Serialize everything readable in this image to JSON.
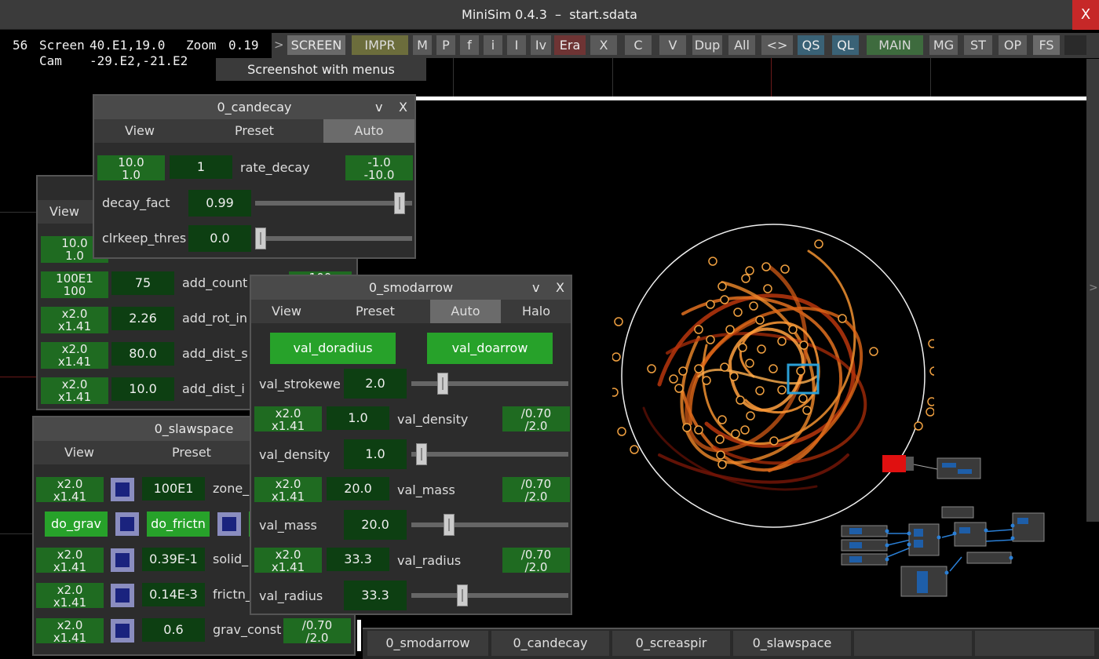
{
  "window": {
    "title": "MiniSim 0.4.3  –  start.sdata",
    "close_label": "X"
  },
  "status": {
    "fps": "56",
    "screen_label": "Screen",
    "screen_value": "40.E1,19.0",
    "zoom_label": "Zoom",
    "zoom_value": "0.19",
    "cam_label": "Cam",
    "cam_value": "-29.E2,-21.E2"
  },
  "toolbar": {
    "arrow": ">",
    "buttons": [
      "SCREEN",
      "IMPR",
      "M",
      "P",
      "f",
      "i",
      "I",
      "Iv",
      "Era",
      "X",
      "C",
      "V",
      "Dup",
      "All",
      "<>",
      "QS",
      "QL",
      "MAIN",
      "MG",
      "ST",
      "OP",
      "FS"
    ]
  },
  "tooltip": "Screenshot with menus",
  "panels": {
    "candecay": {
      "title": "0_candecay",
      "collapse": "v",
      "close": "X",
      "tabs": [
        "View",
        "Preset",
        "Auto"
      ],
      "rate_row": {
        "mult_top": "10.0",
        "mult_bot": "1.0",
        "value": "1",
        "label": "rate_decay",
        "range_top": "-1.0",
        "range_bot": "-10.0"
      },
      "decay_fact": {
        "label": "decay_fact",
        "value": "0.99",
        "level": 0.95
      },
      "clrkeep": {
        "label": "clrkeep_thres",
        "value": "0.0",
        "level": 0.0
      }
    },
    "hidden": {
      "tab_view": "View",
      "rows": [
        {
          "mult_top": "10.0",
          "mult_bot": "1.0"
        },
        {
          "mult_top": "100E1",
          "mult_bot": "100",
          "value": "75",
          "label": "add_count",
          "range": "100"
        },
        {
          "mult_top": "x2.0",
          "mult_bot": "x1.41",
          "value": "2.26",
          "label": "add_rot_in"
        },
        {
          "mult_top": "x2.0",
          "mult_bot": "x1.41",
          "value": "80.0",
          "label": "add_dist_s"
        },
        {
          "mult_top": "x2.0",
          "mult_bot": "x1.41",
          "value": "10.0",
          "label": "add_dist_i"
        }
      ]
    },
    "slawspace": {
      "title": "0_slawspace",
      "tabs": [
        "View",
        "Preset"
      ],
      "rows": [
        {
          "mult_top": "x2.0",
          "mult_bot": "x1.41",
          "value": "100E1",
          "label": "zone_"
        },
        {
          "mult_top": "x2.0",
          "mult_bot": "x1.41",
          "value": "0.39E-1",
          "label": "solid_"
        },
        {
          "mult_top": "x2.0",
          "mult_bot": "x1.41",
          "value": "0.14E-3",
          "label": "frictn_"
        },
        {
          "mult_top": "x2.0",
          "mult_bot": "x1.41",
          "value": "0.6",
          "label": "grav_const",
          "range_top": "/0.70",
          "range_bot": "/2.0"
        }
      ],
      "do_grav": "do_grav",
      "do_frictn": "do_frictn"
    },
    "smodarrow": {
      "title": "0_smodarrow",
      "collapse": "v",
      "close": "X",
      "tabs": [
        "View",
        "Preset",
        "Auto",
        "Halo"
      ],
      "btn_doradius": "val_doradius",
      "btn_doarrow": "val_doarrow",
      "strokewe": {
        "label": "val_strokewe",
        "value": "2.0",
        "level": 0.18
      },
      "density_row": {
        "mult_top": "x2.0",
        "mult_bot": "x1.41",
        "value": "1.0",
        "label": "val_density",
        "range_top": "/0.70",
        "range_bot": "/2.0"
      },
      "density": {
        "label": "val_density",
        "value": "1.0",
        "level": 0.03
      },
      "mass_row": {
        "mult_top": "x2.0",
        "mult_bot": "x1.41",
        "value": "20.0",
        "label": "val_mass",
        "range_top": "/0.70",
        "range_bot": "/2.0"
      },
      "mass": {
        "label": "val_mass",
        "value": "20.0",
        "level": 0.22
      },
      "radius_row": {
        "mult_top": "x2.0",
        "mult_bot": "x1.41",
        "value": "33.3",
        "label": "val_radius",
        "range_top": "/0.70",
        "range_bot": "/2.0"
      },
      "radius": {
        "label": "val_radius",
        "value": "33.3",
        "level": 0.31
      }
    }
  },
  "taskbar": [
    "0_smodarrow",
    "0_candecay",
    "0_screaspir",
    "0_slawspace"
  ],
  "side_arrow": ">",
  "colors": {
    "green_btn": "#27a22a",
    "value_bg": "#0d3f12",
    "mult_bg": "#1f6b21",
    "close_red": "#c62828",
    "selection": "#2a9fd6"
  }
}
